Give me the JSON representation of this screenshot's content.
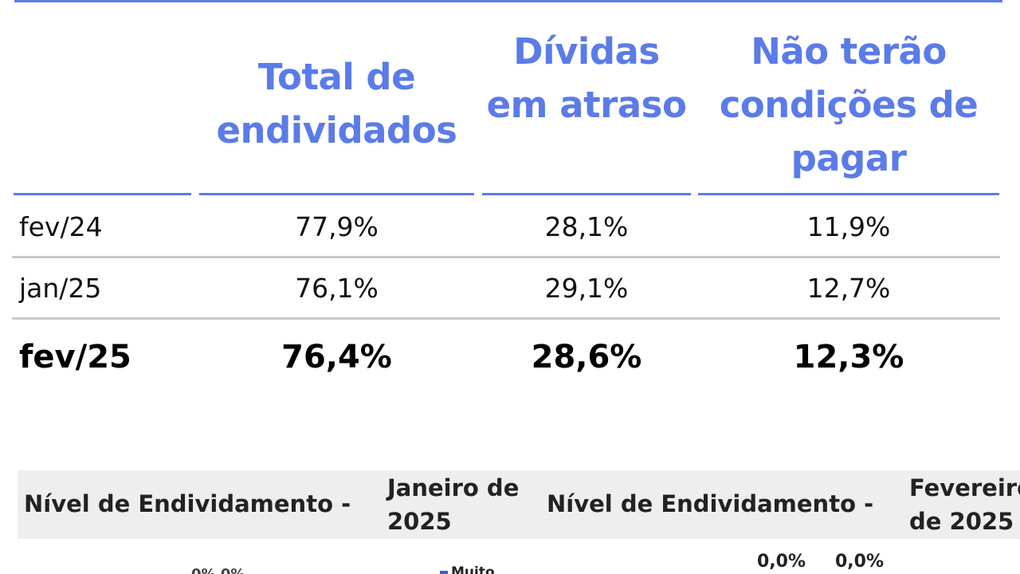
{
  "table": {
    "headers": {
      "label": "",
      "total": "Total de endividados",
      "atraso": "Dívidas em atraso",
      "nao_terao": "Não terão condições de pagar"
    },
    "rows": [
      {
        "period": "fev/24",
        "total": "77,9%",
        "atraso": "28,1%",
        "nao_terao": "11,9%"
      },
      {
        "period": "jan/25",
        "total": "76,1%",
        "atraso": "29,1%",
        "nao_terao": "12,7%"
      },
      {
        "period": "fev/25",
        "total": "76,4%",
        "atraso": "28,6%",
        "nao_terao": "12,3%"
      }
    ]
  },
  "lower": {
    "panel_left_title": "Nível de Endividamento -",
    "panel_left_period": "Janeiro de 2025",
    "panel_right_title": "Nível de Endividamento -",
    "panel_right_period": "Fevereiro de 2025",
    "right_values": [
      "0,0%",
      "0,0%"
    ],
    "left_fragment": "0%  0%",
    "legend_fragment": "Muito"
  },
  "colors": {
    "accent": "#5b7be8",
    "separator": "#c5c8cc",
    "band": "#eeeeee"
  }
}
